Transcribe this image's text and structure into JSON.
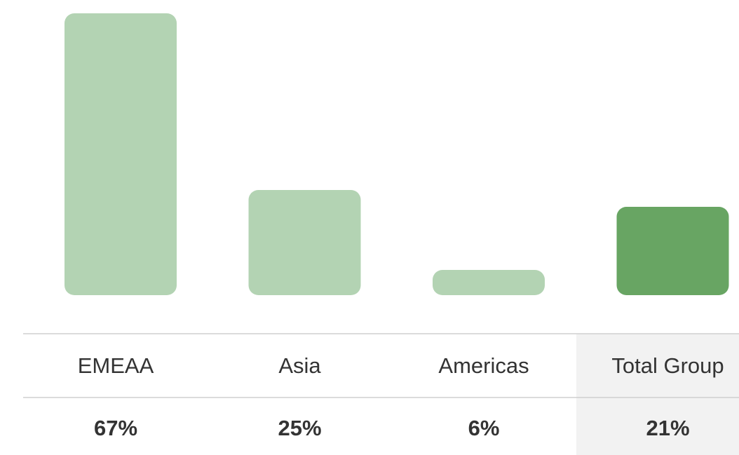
{
  "chart_data": {
    "type": "bar",
    "categories": [
      "EMEAA",
      "Asia",
      "Americas",
      "Total Group"
    ],
    "values": [
      67,
      25,
      6,
      21
    ],
    "value_labels": [
      "67%",
      "25%",
      "6%",
      "21%"
    ],
    "colors": [
      "#b3d3b3",
      "#b3d3b3",
      "#b3d3b3",
      "#68a563"
    ]
  }
}
